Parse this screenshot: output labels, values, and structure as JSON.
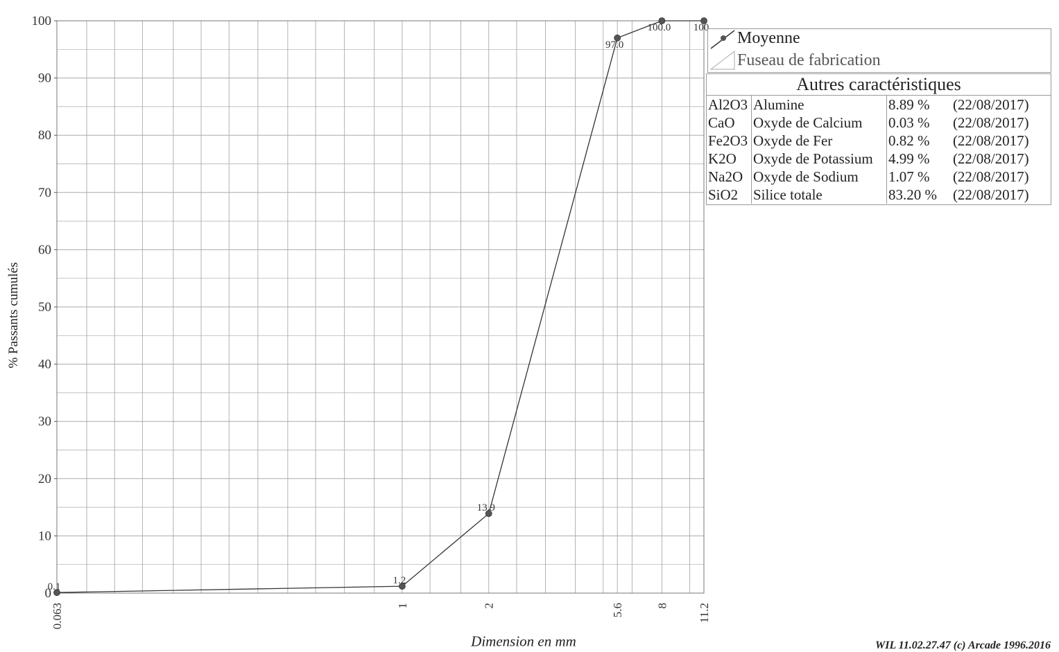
{
  "chart_data": {
    "type": "line",
    "xlabel": "Dimension en mm",
    "ylabel": "% Passants cumulés",
    "x_scale": "log",
    "ylim": [
      0,
      100
    ],
    "yticks": [
      0,
      10,
      20,
      30,
      40,
      50,
      60,
      70,
      80,
      90,
      100
    ],
    "xticks": [
      "0.063",
      "1",
      "2",
      "5.6",
      "8",
      "11.2"
    ],
    "grid": true,
    "legend_position": "top-right",
    "series": [
      {
        "name": "Moyenne",
        "x": [
          0.063,
          1,
          2,
          5.6,
          8,
          11.2
        ],
        "values": [
          0.1,
          1.2,
          13.9,
          97.0,
          100.0,
          100
        ],
        "labels": [
          "0.1",
          "1.2",
          "13.9",
          "97.0",
          "100.0",
          "100"
        ]
      }
    ]
  },
  "legend": {
    "entries": [
      "Moyenne",
      "Fuseau de fabrication"
    ]
  },
  "properties": {
    "title": "Autres caractéristiques",
    "rows": [
      {
        "code": "Al2O3",
        "name": "Alumine",
        "value": "8.89 %",
        "date": "(22/08/2017)"
      },
      {
        "code": "CaO",
        "name": "Oxyde de Calcium",
        "value": "0.03 %",
        "date": "(22/08/2017)"
      },
      {
        "code": "Fe2O3",
        "name": "Oxyde de Fer",
        "value": "0.82 %",
        "date": "(22/08/2017)"
      },
      {
        "code": "K2O",
        "name": "Oxyde de Potassium",
        "value": "4.99 %",
        "date": "(22/08/2017)"
      },
      {
        "code": "Na2O",
        "name": "Oxyde de Sodium",
        "value": "1.07 %",
        "date": "(22/08/2017)"
      },
      {
        "code": "SiO2",
        "name": "Silice totale",
        "value": "83.20 %",
        "date": "(22/08/2017)"
      }
    ]
  },
  "footer": "WIL 11.02.27.47 (c) Arcade 1996.2016",
  "colors": {
    "line": "#333333",
    "grid": "#aaaaaa",
    "marker": "#555555"
  }
}
